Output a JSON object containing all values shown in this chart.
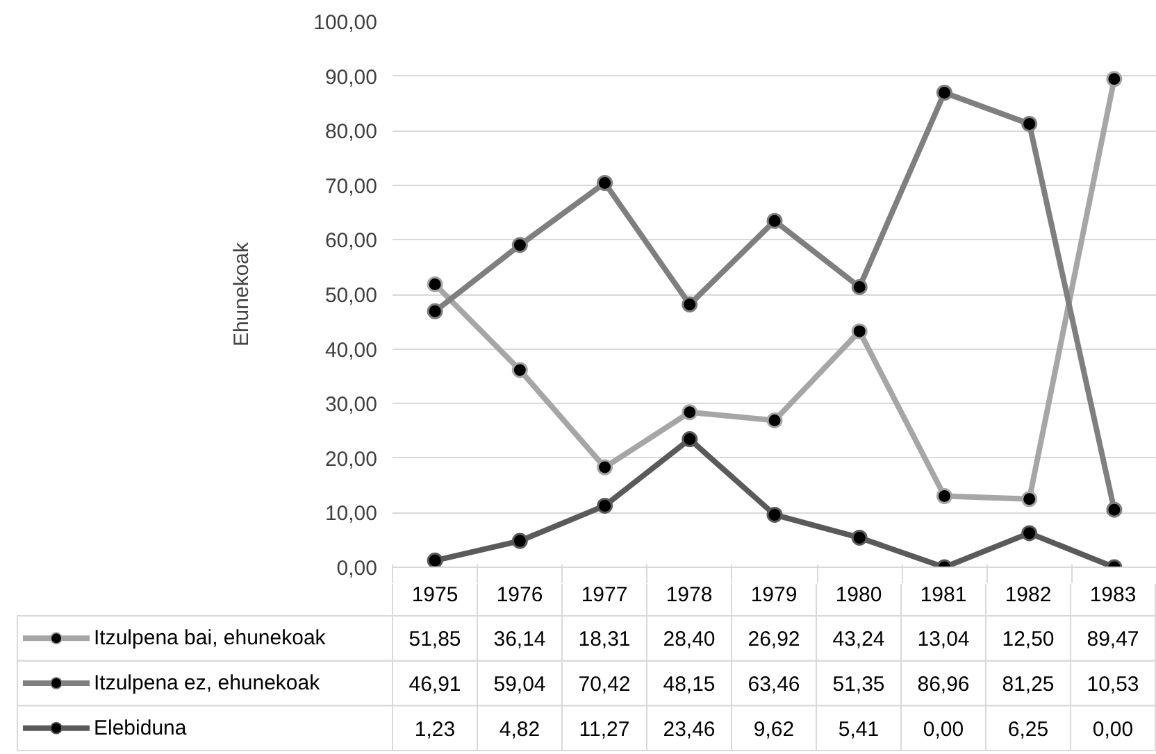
{
  "chart_data": {
    "type": "line",
    "ylabel": "Ehunekoak",
    "categories": [
      "1975",
      "1976",
      "1977",
      "1978",
      "1979",
      "1980",
      "1981",
      "1982",
      "1983"
    ],
    "series": [
      {
        "name": "Itzulpena bai, ehunekoak",
        "color": "#a6a6a6",
        "values": [
          51.85,
          36.14,
          18.31,
          28.4,
          26.92,
          43.24,
          13.04,
          12.5,
          89.47
        ],
        "value_labels": [
          "51,85",
          "36,14",
          "18,31",
          "28,40",
          "26,92",
          "43,24",
          "13,04",
          "12,50",
          "89,47"
        ]
      },
      {
        "name": "Itzulpena ez, ehunekoak",
        "color": "#7f7f7f",
        "values": [
          46.91,
          59.04,
          70.42,
          48.15,
          63.46,
          51.35,
          86.96,
          81.25,
          10.53
        ],
        "value_labels": [
          "46,91",
          "59,04",
          "70,42",
          "48,15",
          "63,46",
          "51,35",
          "86,96",
          "81,25",
          "10,53"
        ]
      },
      {
        "name": "Elebiduna",
        "color": "#5a5a5a",
        "values": [
          1.23,
          4.82,
          11.27,
          23.46,
          9.62,
          5.41,
          0.0,
          6.25,
          0.0
        ],
        "value_labels": [
          "1,23",
          "4,82",
          "11,27",
          "23,46",
          "9,62",
          "5,41",
          "0,00",
          "6,25",
          "0,00"
        ]
      }
    ],
    "ylim": [
      0,
      100
    ],
    "yticks": [
      {
        "value": 0,
        "label": "0,00"
      },
      {
        "value": 10,
        "label": "10,00"
      },
      {
        "value": 20,
        "label": "20,00"
      },
      {
        "value": 30,
        "label": "30,00"
      },
      {
        "value": 40,
        "label": "40,00"
      },
      {
        "value": 50,
        "label": "50,00"
      },
      {
        "value": 60,
        "label": "60,00"
      },
      {
        "value": 70,
        "label": "70,00"
      },
      {
        "value": 80,
        "label": "80,00"
      },
      {
        "value": 90,
        "label": "90,00"
      },
      {
        "value": 100,
        "label": "100,00"
      }
    ],
    "grid": "y",
    "marker": "circle",
    "line_style": "solid",
    "legend": "bottom"
  }
}
